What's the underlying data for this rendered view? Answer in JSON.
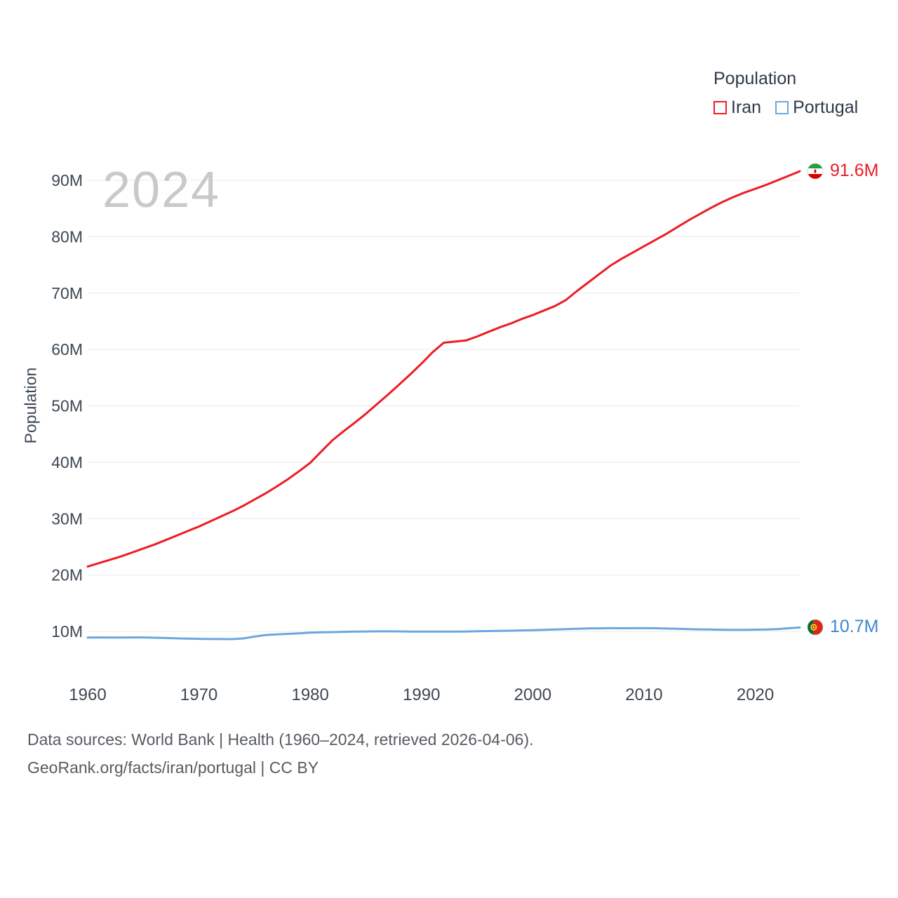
{
  "watermark": "2024",
  "legend": {
    "title": "Population",
    "items": [
      {
        "label": "Iran",
        "color": "#ed1c24"
      },
      {
        "label": "Portugal",
        "color": "#6ba7de"
      }
    ]
  },
  "end_labels": {
    "iran": {
      "label": "91.6M",
      "color": "#ed1c24"
    },
    "portugal": {
      "label": "10.7M",
      "color": "#3e87cc"
    }
  },
  "footer": {
    "line1": "Data sources: World Bank | Health (1960–2024, retrieved 2026-04-06).",
    "line2": "GeoRank.org/facts/iran/portugal | CC BY"
  },
  "colors": {
    "grid": "#ebebeb",
    "tick": "#3d4752"
  },
  "chart_data": {
    "type": "line",
    "title": "Population",
    "xlabel": "",
    "ylabel": "Population",
    "grid": true,
    "legend_position": "top-right",
    "xlim": [
      1960,
      2024
    ],
    "ylim": [
      5,
      95
    ],
    "x_ticks": [
      {
        "value": 1960,
        "label": "1960"
      },
      {
        "value": 1970,
        "label": "1970"
      },
      {
        "value": 1980,
        "label": "1980"
      },
      {
        "value": 1990,
        "label": "1990"
      },
      {
        "value": 2000,
        "label": "2000"
      },
      {
        "value": 2010,
        "label": "2010"
      },
      {
        "value": 2020,
        "label": "2020"
      }
    ],
    "y_ticks": [
      {
        "value": 10,
        "label": "10M"
      },
      {
        "value": 20,
        "label": "20M"
      },
      {
        "value": 30,
        "label": "30M"
      },
      {
        "value": 40,
        "label": "40M"
      },
      {
        "value": 50,
        "label": "50M"
      },
      {
        "value": 60,
        "label": "60M"
      },
      {
        "value": 70,
        "label": "70M"
      },
      {
        "value": 80,
        "label": "80M"
      },
      {
        "value": 90,
        "label": "90M"
      }
    ],
    "x": [
      1960,
      1961,
      1962,
      1963,
      1964,
      1965,
      1966,
      1967,
      1968,
      1969,
      1970,
      1971,
      1972,
      1973,
      1974,
      1975,
      1976,
      1977,
      1978,
      1979,
      1980,
      1981,
      1982,
      1983,
      1984,
      1985,
      1986,
      1987,
      1988,
      1989,
      1990,
      1991,
      1992,
      1993,
      1994,
      1995,
      1996,
      1997,
      1998,
      1999,
      2000,
      2001,
      2002,
      2003,
      2004,
      2005,
      2006,
      2007,
      2008,
      2009,
      2010,
      2011,
      2012,
      2013,
      2014,
      2015,
      2016,
      2017,
      2018,
      2019,
      2020,
      2021,
      2022,
      2023,
      2024
    ],
    "series": [
      {
        "name": "Iran",
        "color": "#ed1c24",
        "values": [
          21.5,
          22.1,
          22.7,
          23.3,
          24.0,
          24.7,
          25.4,
          26.2,
          27.0,
          27.8,
          28.6,
          29.5,
          30.4,
          31.3,
          32.3,
          33.4,
          34.5,
          35.7,
          37.0,
          38.4,
          39.9,
          41.9,
          43.9,
          45.5,
          47.0,
          48.6,
          50.3,
          52.0,
          53.8,
          55.6,
          57.5,
          59.5,
          61.2,
          61.4,
          61.6,
          62.3,
          63.1,
          63.9,
          64.6,
          65.4,
          66.1,
          66.9,
          67.7,
          68.8,
          70.4,
          71.9,
          73.4,
          74.9,
          76.1,
          77.2,
          78.3,
          79.4,
          80.5,
          81.7,
          82.9,
          84.0,
          85.1,
          86.1,
          87.0,
          87.8,
          88.5,
          89.2,
          90.0,
          90.8,
          91.6
        ]
      },
      {
        "name": "Portugal",
        "color": "#6ba7de",
        "values": [
          8.91,
          8.93,
          8.92,
          8.92,
          8.93,
          8.93,
          8.88,
          8.83,
          8.77,
          8.72,
          8.68,
          8.64,
          8.64,
          8.63,
          8.75,
          9.09,
          9.36,
          9.46,
          9.56,
          9.66,
          9.77,
          9.85,
          9.88,
          9.92,
          9.96,
          9.99,
          10.01,
          10.01,
          10.0,
          9.98,
          9.98,
          9.97,
          9.96,
          9.97,
          9.99,
          10.02,
          10.06,
          10.09,
          10.13,
          10.17,
          10.23,
          10.29,
          10.35,
          10.41,
          10.47,
          10.52,
          10.55,
          10.57,
          10.56,
          10.57,
          10.57,
          10.56,
          10.51,
          10.46,
          10.4,
          10.36,
          10.33,
          10.3,
          10.28,
          10.29,
          10.31,
          10.33,
          10.41,
          10.56,
          10.7
        ]
      }
    ]
  }
}
